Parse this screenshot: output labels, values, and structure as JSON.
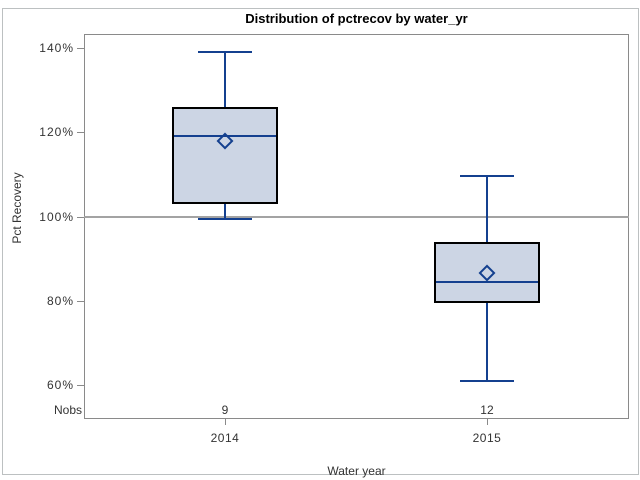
{
  "chart_data": {
    "type": "box",
    "title": "Distribution of pctrecov by water_yr",
    "xlabel": "Water year",
    "ylabel": "Pct Recovery",
    "nobs_label": "Nobs",
    "categories": [
      "2014",
      "2015"
    ],
    "y_ticks": [
      {
        "label": "140%",
        "value": 140
      },
      {
        "label": "120%",
        "value": 120
      },
      {
        "label": "100%",
        "value": 100
      },
      {
        "label": "80%",
        "value": 80
      },
      {
        "label": "60%",
        "value": 60
      }
    ],
    "ylim": [
      58,
      144
    ],
    "reference_line": 100,
    "grid": false,
    "legend": "none",
    "boxes": [
      {
        "category": "2014",
        "nobs": "9",
        "whisker_low": 99.5,
        "q1": 103,
        "median": 119,
        "q3": 126,
        "whisker_high": 139,
        "mean": 118
      },
      {
        "category": "2015",
        "nobs": "12",
        "whisker_low": 61,
        "q1": 79.5,
        "median": 84.5,
        "q3": 94,
        "whisker_high": 109.5,
        "mean": 86.5
      }
    ]
  },
  "colors": {
    "box_fill": "#ccd5e4",
    "box_border": "#000000",
    "line": "#14408f",
    "frame": "#8a8a8a",
    "reference_line": "#a3a3a3",
    "text": "#333333",
    "title": "#000000",
    "outer_border": "#bcc0c1",
    "background": "#ffffff"
  }
}
